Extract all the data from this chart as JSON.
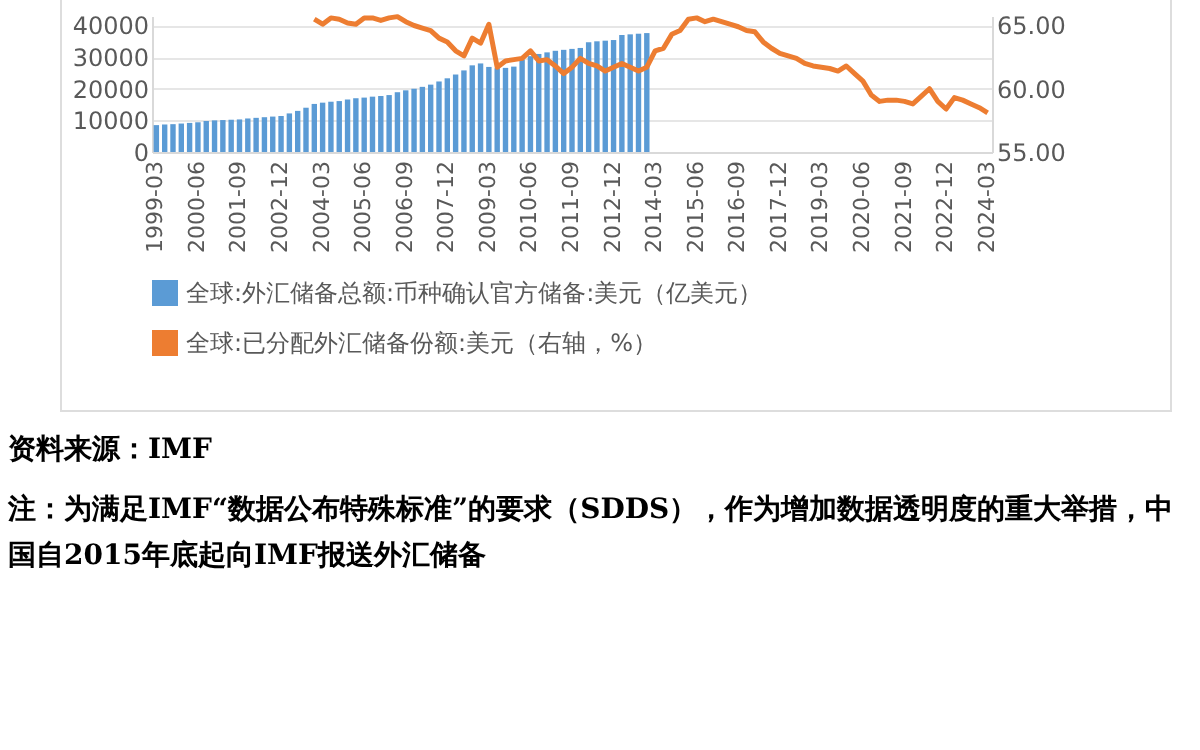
{
  "chart_data": {
    "type": "bar",
    "categories": [
      "1999-03",
      null,
      null,
      null,
      null,
      "2000-06",
      null,
      null,
      null,
      null,
      "2001-09",
      null,
      null,
      null,
      null,
      "2002-12",
      null,
      null,
      null,
      null,
      "2004-03",
      null,
      null,
      null,
      null,
      "2005-06",
      null,
      null,
      null,
      null,
      "2006-09",
      null,
      null,
      null,
      null,
      "2007-12",
      null,
      null,
      null,
      null,
      "2009-03",
      null,
      null,
      null,
      null,
      "2010-06",
      null,
      null,
      null,
      null,
      "2011-09",
      null,
      null,
      null,
      null,
      "2012-12",
      null,
      null,
      null,
      null,
      "2014-03",
      null,
      null,
      null,
      null,
      "2015-06",
      null,
      null,
      null,
      null,
      "2016-09",
      null,
      null,
      null,
      null,
      "2017-12",
      null,
      null,
      null,
      null,
      "2019-03",
      null,
      null,
      null,
      null,
      "2020-06",
      null,
      null,
      null,
      null,
      "2021-09",
      null,
      null,
      null,
      null,
      "2022-12",
      null,
      null,
      null,
      null,
      "2024-03"
    ],
    "series": [
      {
        "name": "全球:外汇储备总额:币种确认官方储备:美元（亿美元）",
        "color": "#5b9bd5",
        "values": [
          8500,
          8700,
          8800,
          9000,
          9200,
          9400,
          9800,
          10000,
          10100,
          10200,
          10300,
          10600,
          10800,
          11000,
          11200,
          11400,
          12200,
          13000,
          14000,
          15200,
          15600,
          15900,
          16100,
          16600,
          17000,
          17200,
          17500,
          17700,
          18000,
          18900,
          19500,
          20000,
          20600,
          21300,
          22300,
          23300,
          24500,
          25800,
          27400,
          28000,
          26900,
          26500,
          26600,
          27000,
          29200,
          30300,
          31000,
          31500,
          32000,
          32300,
          32600,
          32900,
          34700,
          35000,
          35200,
          35400,
          37000,
          37200,
          37400,
          37600,
          null,
          null,
          null,
          null,
          null,
          null,
          null,
          null,
          null,
          null,
          null,
          null,
          null,
          null,
          null,
          null,
          null,
          null,
          null,
          null,
          null,
          null,
          null,
          null,
          null,
          null,
          null,
          null,
          null,
          null,
          null,
          null,
          null,
          null,
          null,
          null,
          null,
          null,
          null,
          null,
          null
        ]
      },
      {
        "name": "全球:已分配外汇储备份额:美元（右轴，%）",
        "type": "line",
        "axis": "y2",
        "color": "#ed7d31",
        "values": [
          null,
          null,
          null,
          null,
          null,
          null,
          null,
          null,
          null,
          null,
          null,
          null,
          null,
          null,
          null,
          null,
          null,
          null,
          null,
          65.5,
          65.1,
          65.6,
          65.5,
          65.2,
          65.1,
          65.6,
          65.6,
          65.4,
          65.6,
          65.7,
          65.3,
          65.0,
          64.8,
          64.6,
          64.0,
          63.7,
          63.0,
          62.6,
          64.0,
          63.6,
          65.1,
          61.7,
          62.2,
          62.3,
          62.4,
          63.0,
          62.2,
          62.3,
          61.8,
          61.2,
          61.7,
          62.4,
          62.0,
          61.8,
          61.4,
          61.7,
          62.0,
          61.7,
          61.4,
          61.7,
          63.0,
          63.2,
          64.3,
          64.6,
          65.5,
          65.6,
          65.3,
          65.5,
          65.3,
          65.1,
          64.9,
          64.6,
          64.5,
          63.7,
          63.2,
          62.8,
          62.6,
          62.4,
          62.0,
          61.8,
          61.7,
          61.6,
          61.4,
          61.8,
          61.2,
          60.6,
          59.5,
          59.0,
          59.1,
          59.1,
          59.0,
          58.8,
          59.4,
          60.0,
          59.0,
          58.4,
          59.3,
          59.1,
          58.8,
          58.5,
          58.1
        ]
      }
    ],
    "ylim": [
      0,
      43000
    ],
    "yticks": [
      0,
      10000,
      20000,
      30000,
      40000
    ],
    "y2lim": [
      55,
      65.75
    ],
    "y2ticks": [
      {
        "value": 55,
        "label": "55.00"
      },
      {
        "value": 60,
        "label": "60.00"
      },
      {
        "value": 65,
        "label": "65.00"
      }
    ],
    "grid": "y",
    "legend": "bottom",
    "annotations": [
      "资料来源：IMF",
      "注：为满足IMF“数据公布特殊标准”的要求（SDDS），作为增加数据透明度的重大举措，中国自2015年底起向IMF报送外汇储备"
    ]
  }
}
